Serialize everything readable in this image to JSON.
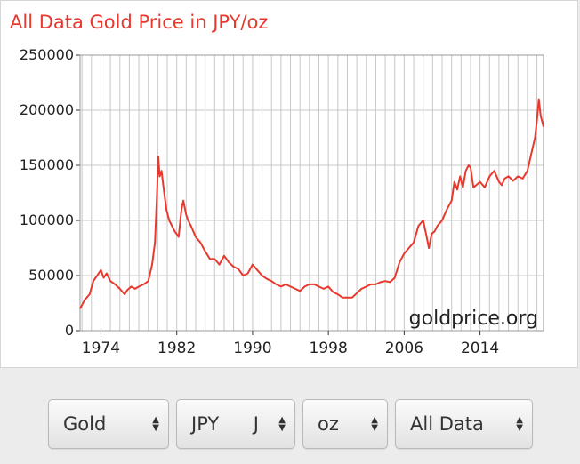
{
  "chart_data": {
    "type": "line",
    "title": "All Data Gold Price in JPY/oz",
    "watermark": "goldprice.org",
    "xlabel": "",
    "ylabel": "",
    "xlim": [
      1971.8,
      2020.7
    ],
    "ylim": [
      0,
      250000
    ],
    "xticks": [
      1974,
      1982,
      1990,
      1998,
      2006,
      2014
    ],
    "yticks": [
      0,
      50000,
      100000,
      150000,
      200000,
      250000
    ],
    "ytick_labels": [
      "0",
      "50000",
      "100000",
      "150000",
      "200000",
      "250000"
    ],
    "grid": true,
    "line_color": "#e8392f",
    "series": [
      {
        "name": "Gold JPY/oz",
        "x": [
          1971.8,
          1972.3,
          1972.8,
          1973.2,
          1973.6,
          1974.0,
          1974.3,
          1974.6,
          1975.0,
          1975.5,
          1976.0,
          1976.5,
          1976.8,
          1977.2,
          1977.6,
          1978.0,
          1978.5,
          1979.0,
          1979.4,
          1979.7,
          1979.9,
          1980.05,
          1980.2,
          1980.4,
          1980.6,
          1980.9,
          1981.2,
          1981.5,
          1981.8,
          1982.2,
          1982.5,
          1982.7,
          1983.0,
          1983.2,
          1983.5,
          1984.0,
          1984.5,
          1985.0,
          1985.5,
          1986.0,
          1986.5,
          1987.0,
          1987.5,
          1988.0,
          1988.5,
          1989.0,
          1989.5,
          1990.0,
          1990.5,
          1991.0,
          1991.5,
          1992.0,
          1992.5,
          1993.0,
          1993.5,
          1994.0,
          1994.5,
          1995.0,
          1995.5,
          1996.0,
          1996.5,
          1997.0,
          1997.5,
          1998.0,
          1998.5,
          1999.0,
          1999.5,
          2000.0,
          2000.5,
          2001.0,
          2001.5,
          2002.0,
          2002.5,
          2003.0,
          2003.5,
          2004.0,
          2004.5,
          2005.0,
          2005.5,
          2006.0,
          2006.5,
          2007.0,
          2007.5,
          2008.0,
          2008.3,
          2008.6,
          2008.9,
          2009.2,
          2009.5,
          2010.0,
          2010.5,
          2011.0,
          2011.3,
          2011.6,
          2011.9,
          2012.2,
          2012.5,
          2012.8,
          2013.0,
          2013.3,
          2013.6,
          2014.0,
          2014.5,
          2015.0,
          2015.5,
          2016.0,
          2016.3,
          2016.6,
          2017.0,
          2017.5,
          2018.0,
          2018.5,
          2019.0,
          2019.4,
          2019.8,
          2020.0,
          2020.2,
          2020.4,
          2020.7
        ],
        "values": [
          20000,
          28000,
          33000,
          45000,
          50000,
          55000,
          48000,
          52000,
          45000,
          42000,
          38000,
          33000,
          37000,
          40000,
          38000,
          40000,
          42000,
          45000,
          60000,
          80000,
          120000,
          158000,
          140000,
          145000,
          130000,
          110000,
          100000,
          95000,
          90000,
          85000,
          110000,
          118000,
          105000,
          100000,
          95000,
          85000,
          80000,
          72000,
          65000,
          65000,
          60000,
          68000,
          62000,
          58000,
          56000,
          50000,
          52000,
          60000,
          55000,
          50000,
          47000,
          45000,
          42000,
          40000,
          42000,
          40000,
          38000,
          36000,
          40000,
          42000,
          42000,
          40000,
          38000,
          40000,
          35000,
          33000,
          30000,
          30000,
          30000,
          34000,
          38000,
          40000,
          42000,
          42000,
          44000,
          45000,
          44000,
          48000,
          62000,
          70000,
          75000,
          80000,
          95000,
          100000,
          88000,
          75000,
          88000,
          90000,
          95000,
          100000,
          110000,
          118000,
          135000,
          128000,
          140000,
          130000,
          145000,
          150000,
          148000,
          130000,
          132000,
          135000,
          130000,
          140000,
          145000,
          135000,
          132000,
          138000,
          140000,
          136000,
          140000,
          138000,
          145000,
          160000,
          175000,
          190000,
          210000,
          195000,
          185000
        ]
      }
    ]
  },
  "controls": {
    "metal": {
      "value": "Gold"
    },
    "currency": {
      "value": "JPY",
      "symbol": "J"
    },
    "unit": {
      "value": "oz"
    },
    "range": {
      "value": "All Data"
    },
    "arrow_up": "▲",
    "arrow_down": "▼"
  }
}
